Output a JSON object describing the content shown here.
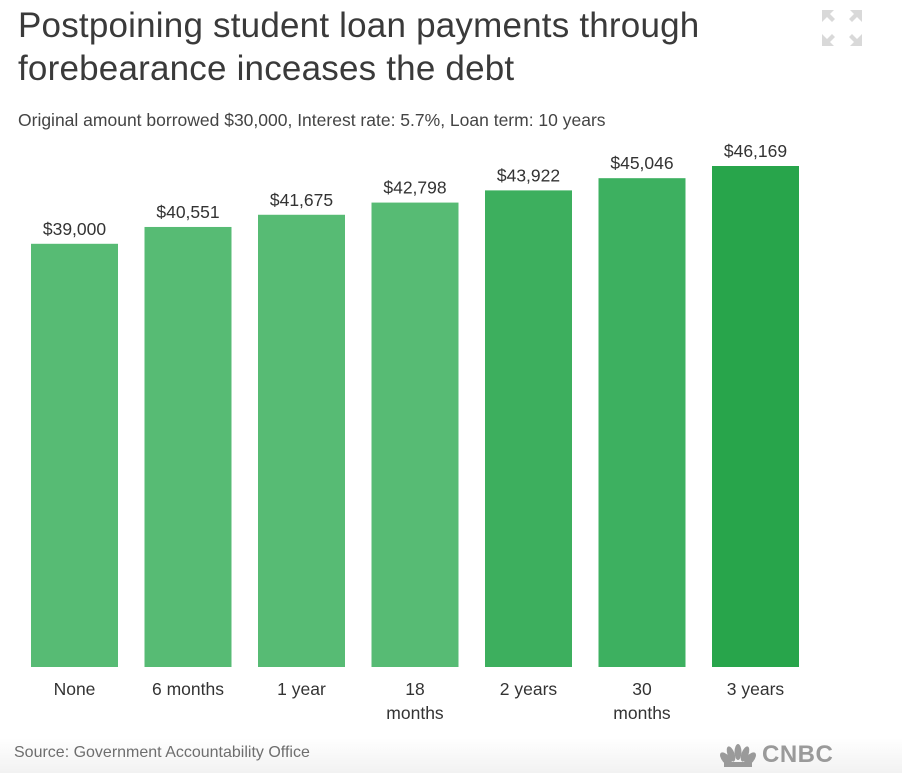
{
  "header": {
    "title": "Postpoining student loan payments through forebearance inceases the debt",
    "subtitle": "Original amount borrowed $30,000, Interest rate: 5.7%, Loan term: 10 years"
  },
  "footer": {
    "source": "Source: Government Accountability Office",
    "logo_text": "CNBC"
  },
  "icons": {
    "expand": "expand-icon",
    "logo": "nbc-peacock-icon"
  },
  "colors": {
    "bar_light": "#57bb74",
    "bar_mid": "#3daf5e",
    "bar_dark": "#28a54b"
  },
  "chart_data": {
    "type": "bar",
    "categories": [
      [
        "None"
      ],
      [
        "6 months"
      ],
      [
        "1 year"
      ],
      [
        "18",
        "months"
      ],
      [
        "2 years"
      ],
      [
        "30",
        "months"
      ],
      [
        "3 years"
      ]
    ],
    "values": [
      39000,
      40551,
      41675,
      42798,
      43922,
      45046,
      46169
    ],
    "value_labels": [
      "$39,000",
      "$40,551",
      "$41,675",
      "$42,798",
      "$43,922",
      "$45,046",
      "$46,169"
    ],
    "title": "Postpoining student loan payments through forebearance inceases the debt",
    "ylim": [
      0,
      46169
    ],
    "grid": false
  }
}
